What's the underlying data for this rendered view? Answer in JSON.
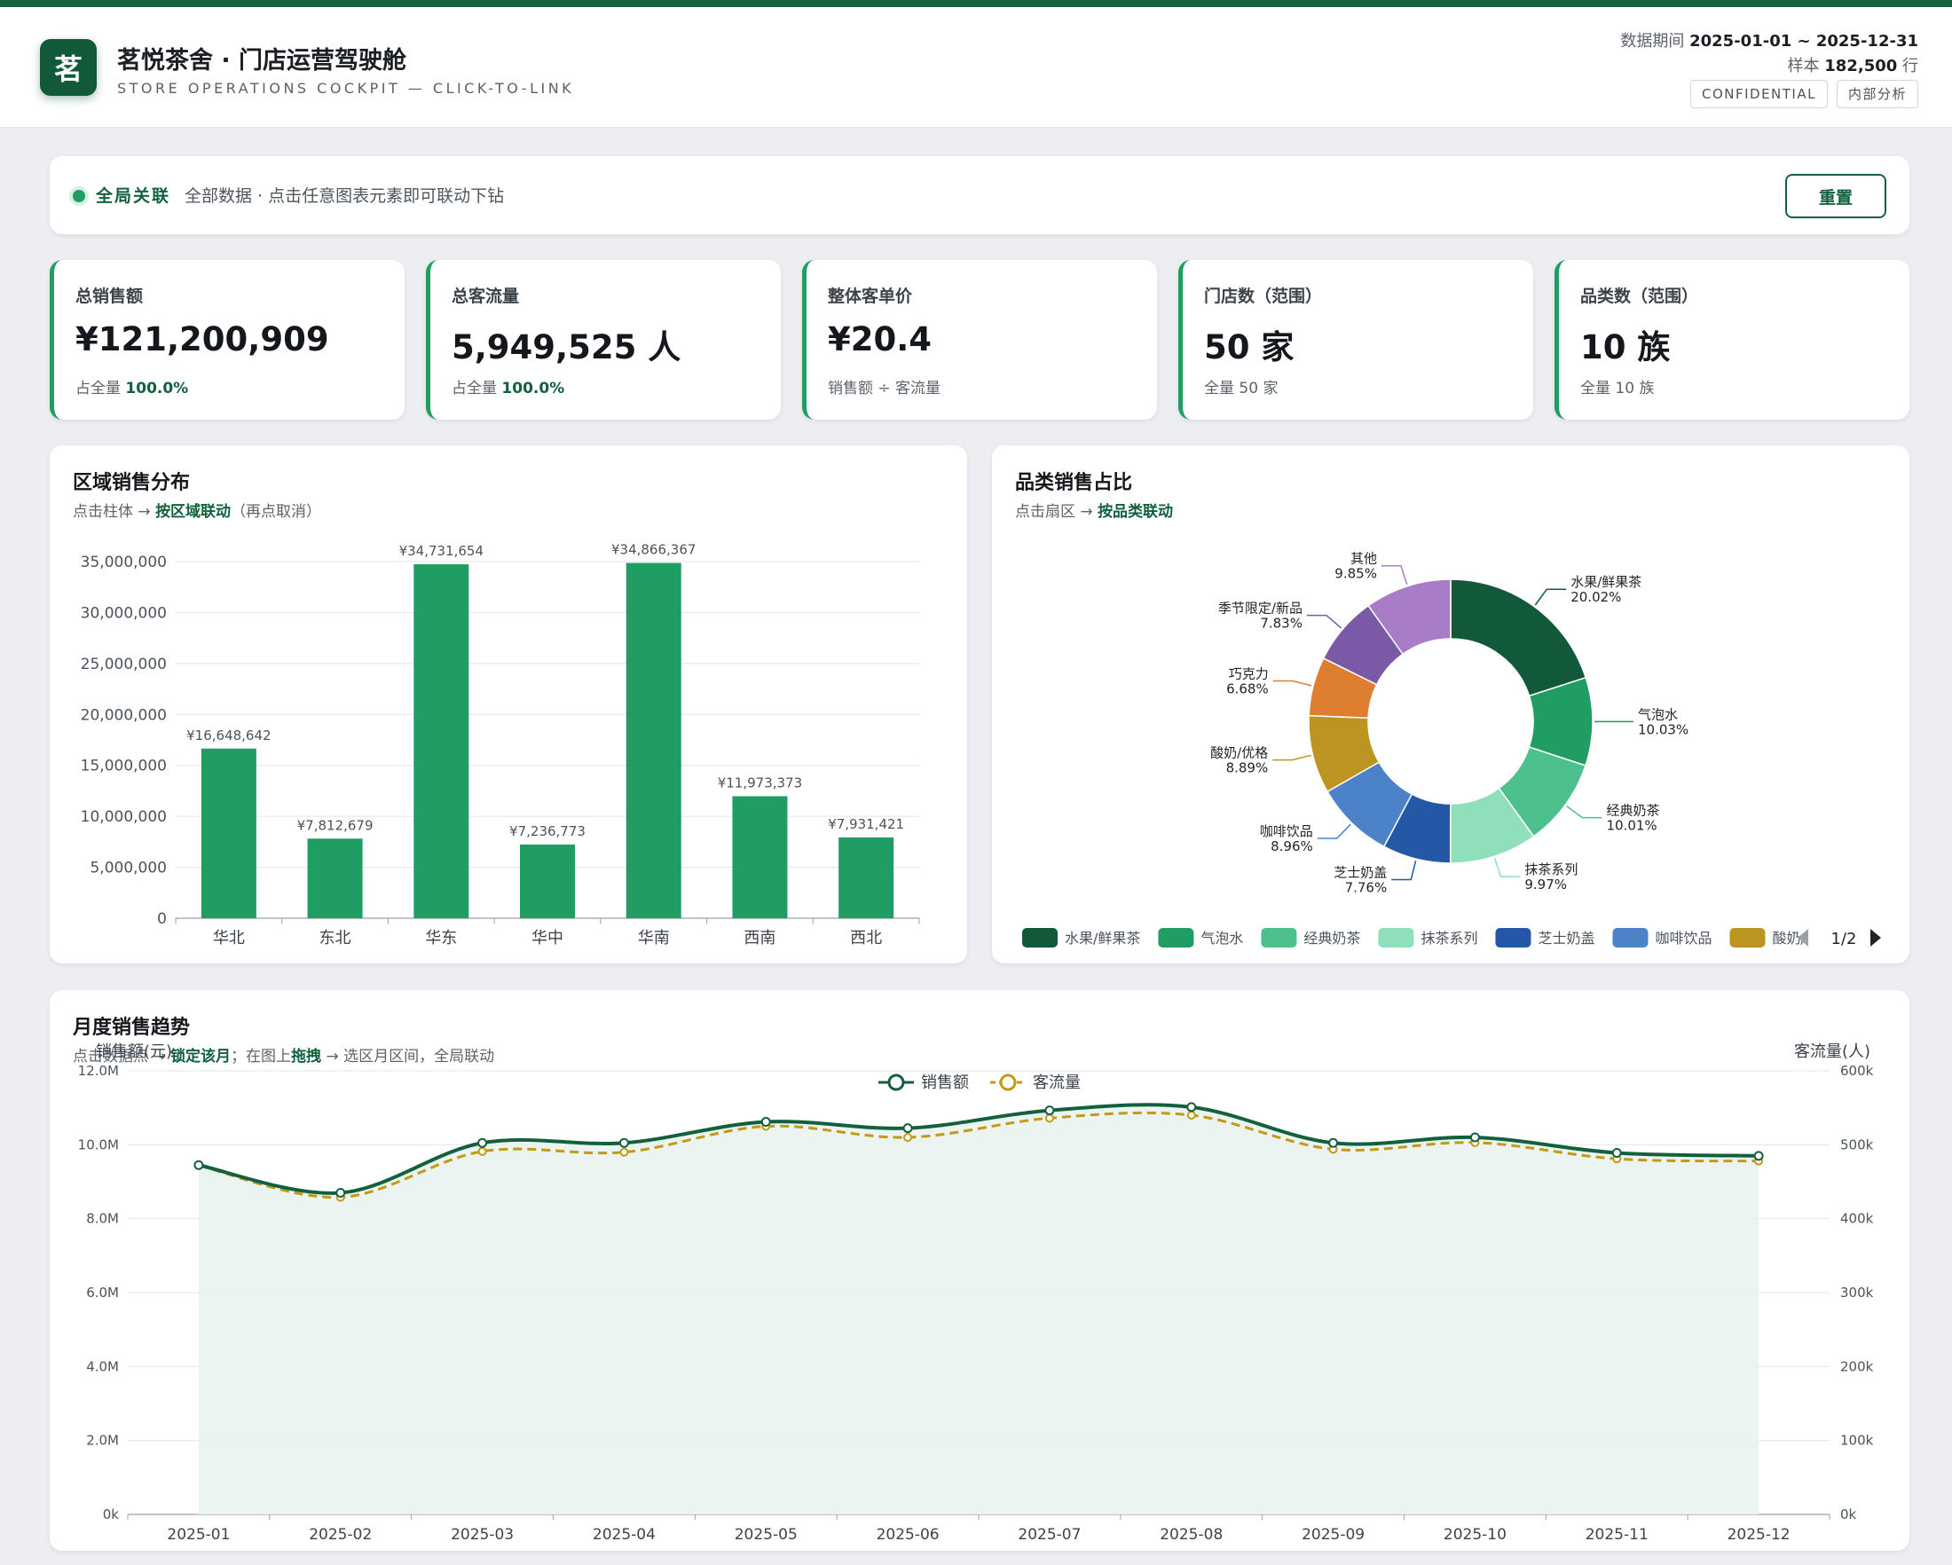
{
  "header": {
    "logo_char": "茗",
    "title": "茗悦茶舍 · 门店运营驾驶舱",
    "subtitle": "STORE OPERATIONS COCKPIT — CLICK-TO-LINK",
    "period_label": "数据期间",
    "period_value": "2025-01-01 ~ 2025-12-31",
    "sample_label": "样本",
    "sample_value": "182,500",
    "sample_unit": "行",
    "badge_confidential": "CONFIDENTIAL",
    "badge_internal": "内部分析"
  },
  "filter": {
    "tag": "全局关联",
    "text": "全部数据 · 点击任意图表元素即可联动下钻",
    "reset_label": "重置"
  },
  "kpis": [
    {
      "label": "总销售额",
      "value": "¥121,200,909",
      "sub_prefix": "占全量",
      "sub_value": "100.0%"
    },
    {
      "label": "总客流量",
      "value": "5,949,525 人",
      "sub_prefix": "占全量",
      "sub_value": "100.0%"
    },
    {
      "label": "整体客单价",
      "value": "¥20.4",
      "sub_prefix": "销售额 ÷ 客流量",
      "sub_value": ""
    },
    {
      "label": "门店数（范围）",
      "value": "50 家",
      "sub_prefix": "全量 50 家",
      "sub_value": ""
    },
    {
      "label": "品类数（范围）",
      "value": "10 族",
      "sub_prefix": "全量 10 族",
      "sub_value": ""
    }
  ],
  "region_panel": {
    "title": "区域销售分布",
    "hint_prefix": "点击柱体 →",
    "hint_bold": "按区域联动",
    "hint_suffix": "（再点取消）"
  },
  "category_panel": {
    "title": "品类销售占比",
    "hint_prefix": "点击扇区 →",
    "hint_bold": "按品类联动",
    "pager": "1/2"
  },
  "trend_panel": {
    "title": "月度销售趋势",
    "hint_p1": "点击数据点 →",
    "hint_b1": "锁定该月",
    "hint_p2": "；在图上",
    "hint_b2": "拖拽",
    "hint_p3": "→ 选区月区间，全局联动"
  },
  "colors": {
    "accent": "#13603d",
    "bar": "#1f9d62",
    "sales_line": "#13603d",
    "traffic_line": "#c39a16"
  },
  "chart_data": [
    {
      "type": "bar",
      "categories": [
        "华北",
        "东北",
        "华东",
        "华中",
        "华南",
        "西南",
        "西北"
      ],
      "values": [
        16648642,
        7812679,
        34731654,
        7236773,
        34866367,
        11973373,
        7931421
      ],
      "data_labels": [
        "¥16,648,642",
        "¥7,812,679",
        "¥34,731,654",
        "¥7,236,773",
        "¥34,866,367",
        "¥11,973,373",
        "¥7,931,421"
      ],
      "ylim": [
        0,
        35000000
      ],
      "yticks": [
        0,
        5000000,
        10000000,
        15000000,
        20000000,
        25000000,
        30000000,
        35000000
      ],
      "ytick_labels": [
        "0",
        "5,000,000",
        "10,000,000",
        "15,000,000",
        "20,000,000",
        "25,000,000",
        "30,000,000",
        "35,000,000"
      ],
      "grid": true
    },
    {
      "type": "pie",
      "donut": true,
      "labels": [
        "水果/鲜果茶",
        "气泡水",
        "经典奶茶",
        "抹茶系列",
        "芝士奶盖",
        "咖啡饮品",
        "酸奶/优格",
        "巧克力",
        "季节限定/新品",
        "其他"
      ],
      "values": [
        20.02,
        10.03,
        10.01,
        9.97,
        7.76,
        8.96,
        8.89,
        6.68,
        7.83,
        9.85
      ],
      "value_labels": [
        "20.02%",
        "10.03%",
        "10.01%",
        "9.97%",
        "7.76%",
        "8.96%",
        "8.89%",
        "6.68%",
        "7.83%",
        "9.85%"
      ],
      "colors": [
        "#12593a",
        "#1f9d62",
        "#4dc08e",
        "#8fdfba",
        "#2458a6",
        "#4c82c8",
        "#bb9422",
        "#de7e30",
        "#7a5aa6",
        "#a97cc8"
      ],
      "legend_items": [
        "水果/鲜果茶",
        "气泡水",
        "经典奶茶",
        "抹茶系列",
        "芝士奶盖",
        "咖啡饮品",
        "酸奶/"
      ],
      "legend_position": "bottom"
    },
    {
      "type": "line",
      "x": [
        "2025-01",
        "2025-02",
        "2025-03",
        "2025-04",
        "2025-05",
        "2025-06",
        "2025-07",
        "2025-08",
        "2025-09",
        "2025-10",
        "2025-11",
        "2025-12"
      ],
      "series": [
        {
          "name": "销售额",
          "axis": "left",
          "values": [
            9450000,
            8700000,
            10050000,
            10050000,
            10620000,
            10450000,
            10930000,
            11020000,
            10050000,
            10200000,
            9780000,
            9700000
          ]
        },
        {
          "name": "客流量",
          "axis": "right",
          "values": [
            472000,
            429000,
            491000,
            490000,
            525000,
            510000,
            536000,
            540000,
            494000,
            503000,
            481000,
            478000
          ]
        }
      ],
      "ylabel_left": "销售额(元)",
      "ylabel_right": "客流量(人)",
      "ylim_left": [
        0,
        12000000
      ],
      "ylim_right": [
        0,
        600000
      ],
      "yticks_left": [
        "0k",
        "2.0M",
        "4.0M",
        "6.0M",
        "8.0M",
        "10.0M",
        "12.0M"
      ],
      "yticks_right": [
        "0k",
        "100k",
        "200k",
        "300k",
        "400k",
        "500k",
        "600k"
      ],
      "legend_position": "top-center",
      "grid": true
    }
  ]
}
